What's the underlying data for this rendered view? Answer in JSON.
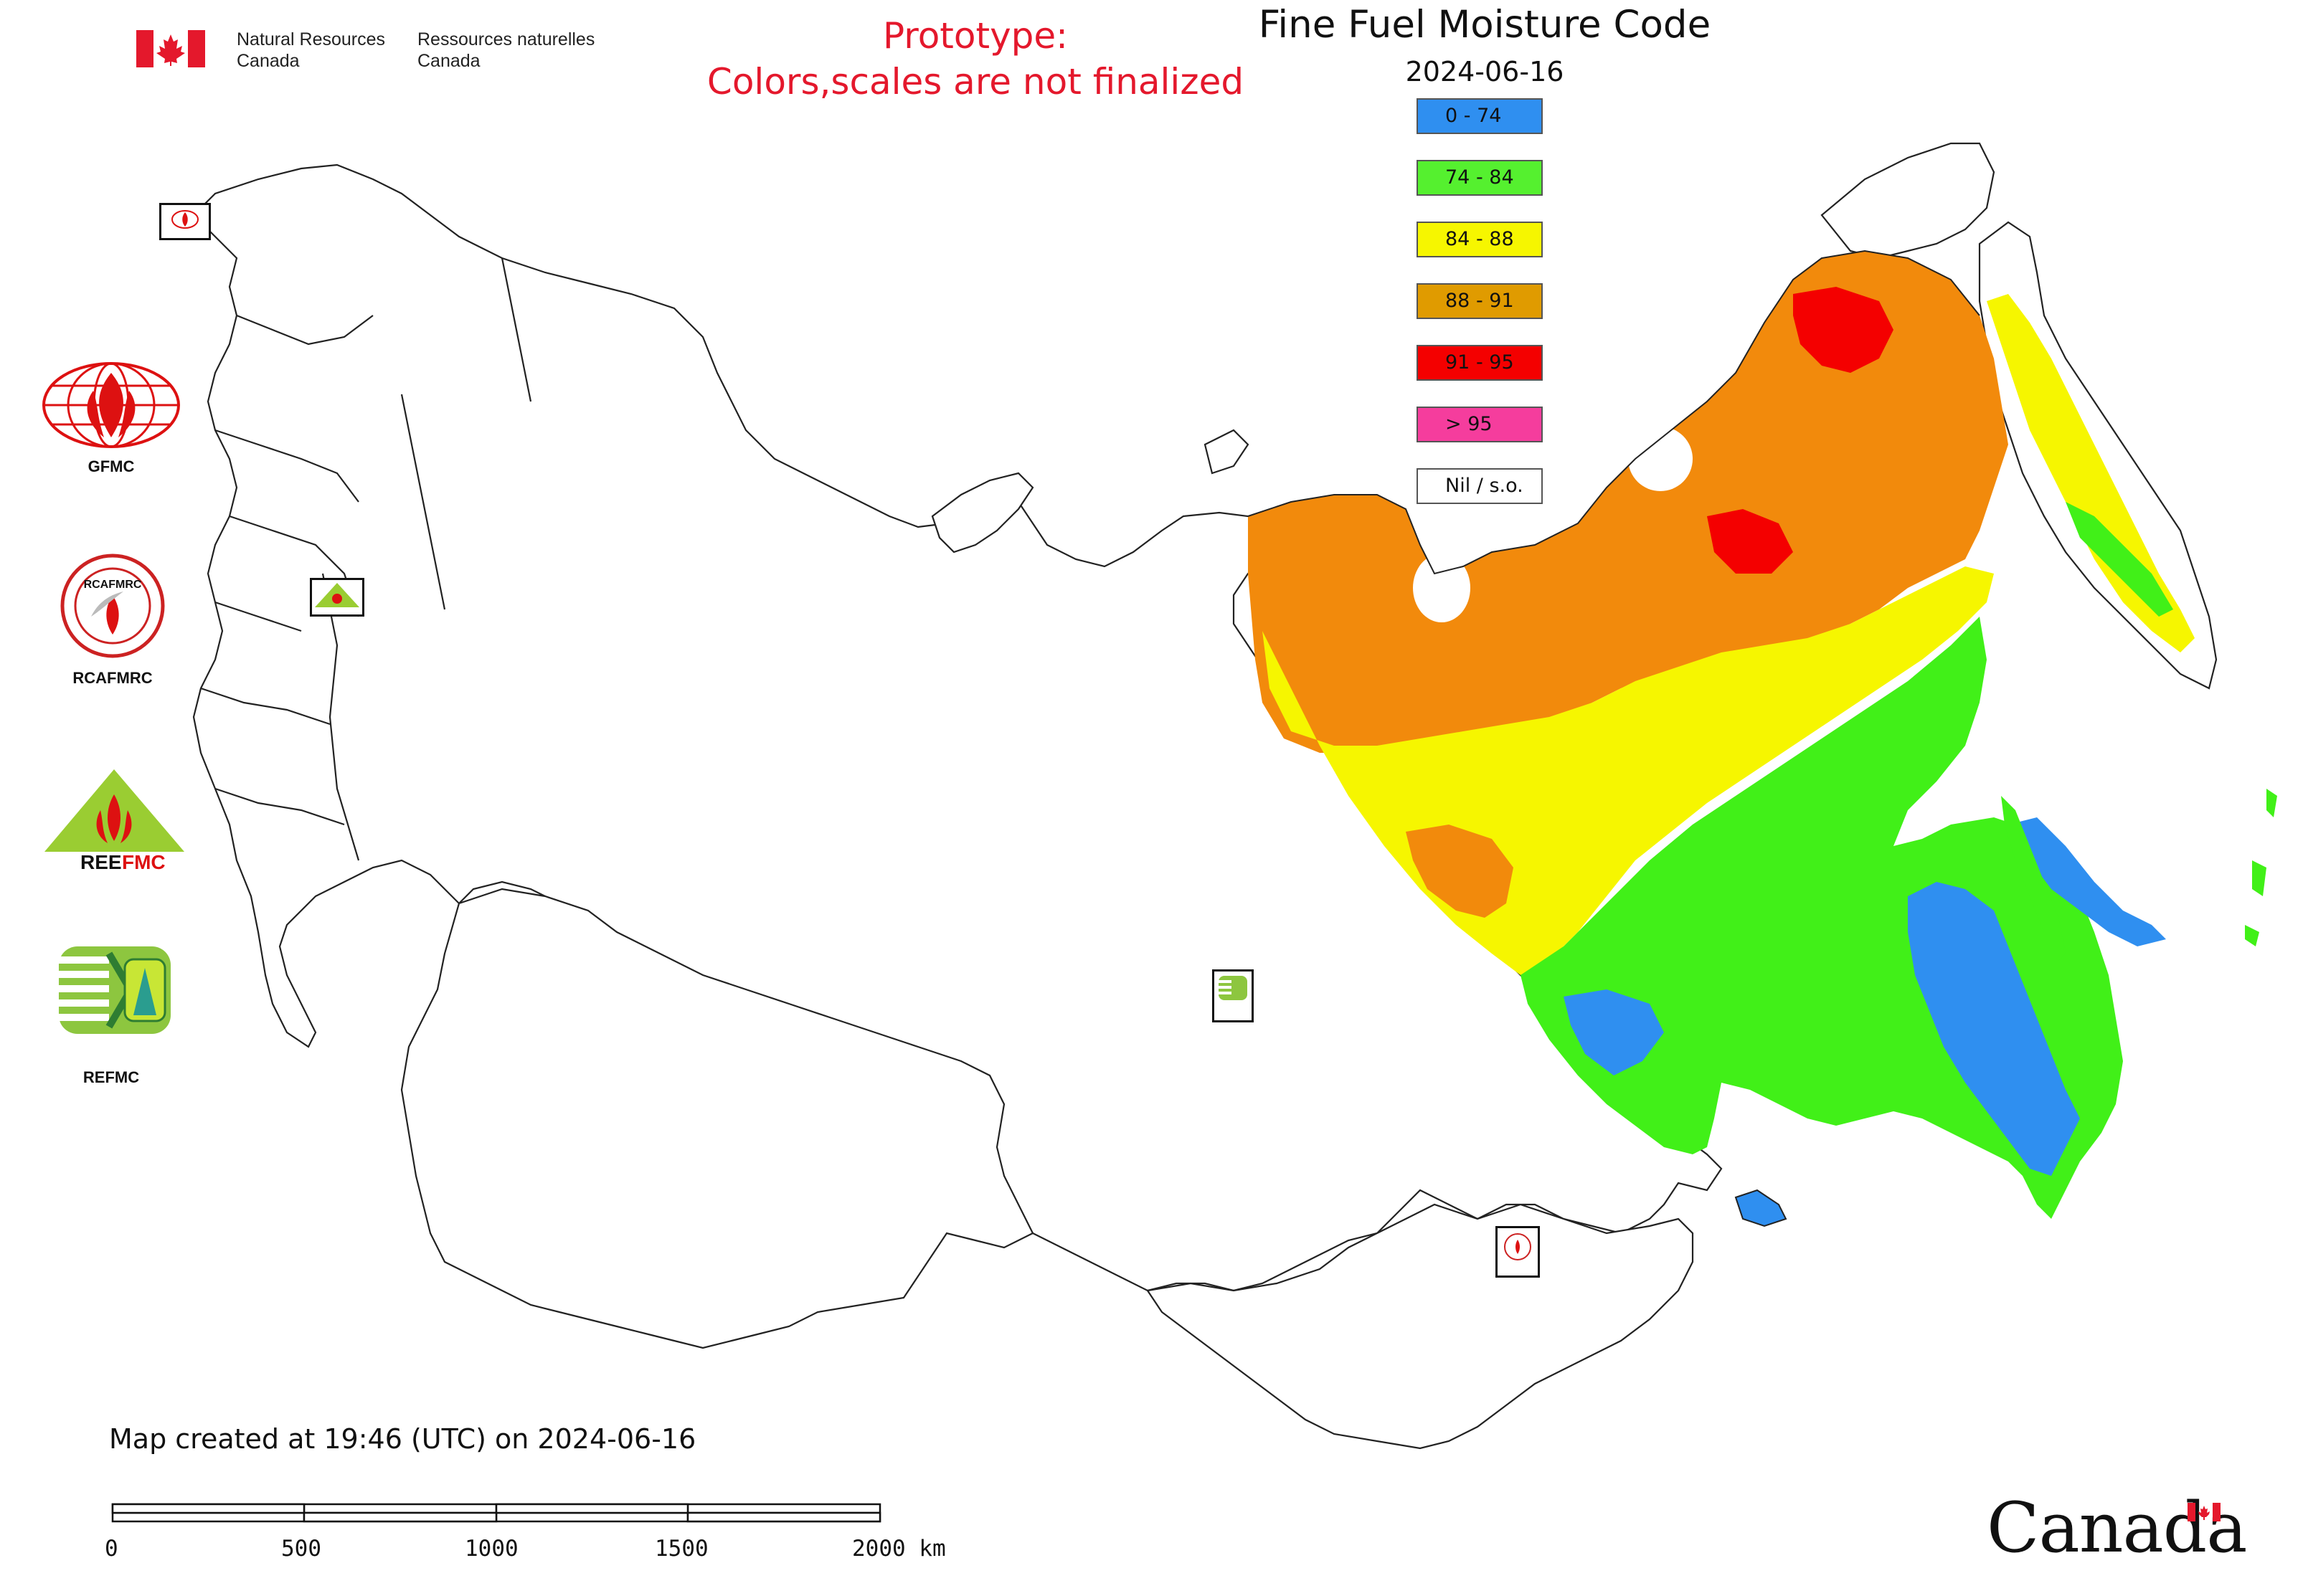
{
  "header": {
    "department_en_line1": "Natural Resources",
    "department_en_line2": "Canada",
    "department_fr_line1": "Ressources naturelles",
    "department_fr_line2": "Canada"
  },
  "notice": {
    "line1": "Prototype:",
    "line2": "Colors,scales are not finalized"
  },
  "map": {
    "title": "Fine Fuel Moisture Code",
    "date": "2024-06-16",
    "created_text": "Map created at 19:46 (UTC) on 2024-06-16"
  },
  "legend": {
    "items": [
      {
        "label": "0 - 74",
        "color": "#2f8ff0"
      },
      {
        "label": "74 - 84",
        "color": "#55f02f"
      },
      {
        "label": "84 - 88",
        "color": "#f6f600"
      },
      {
        "label": "88 - 91",
        "color": "#e09b00"
      },
      {
        "label": "91 - 95",
        "color": "#f40000"
      },
      {
        "label": "> 95",
        "color": "#f53d9d"
      },
      {
        "label": "Nil / s.o.",
        "color": "#ffffff"
      }
    ]
  },
  "logos": {
    "gfmc": "GFMC",
    "rcafmrc": "RCAFMRC",
    "reefmc": "REEFMC",
    "refmc": "REFMC",
    "rcafmrc_ring_text": "RCAFMRC"
  },
  "scalebar": {
    "labels": [
      "0",
      "500",
      "1000",
      "1500",
      "2000 km"
    ]
  },
  "footer": {
    "wordmark": "Canada"
  },
  "colors": {
    "orange": "#f28a0c",
    "yellow": "#f6f600",
    "green": "#41f018",
    "blue": "#2f8ff0",
    "red": "#f40000",
    "notice_red": "#e4182c"
  }
}
